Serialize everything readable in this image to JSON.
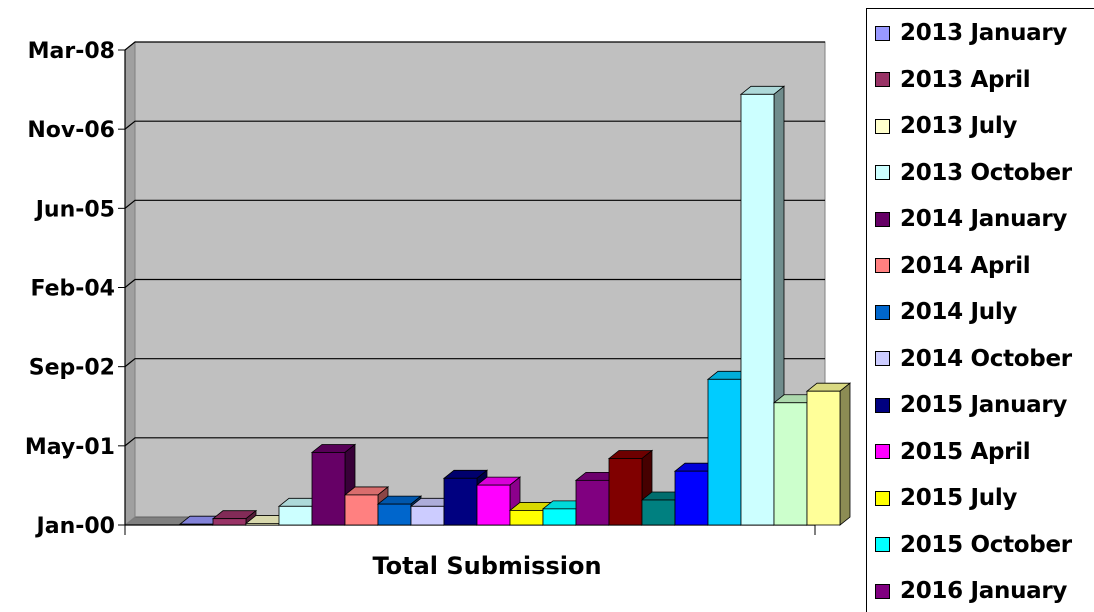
{
  "chart_data": {
    "type": "bar",
    "xlabel": "Total Submission",
    "ylabel": "",
    "y_ticks": [
      "Jan-00",
      "May-01",
      "Sep-02",
      "Feb-04",
      "Jun-05",
      "Nov-06",
      "Mar-08"
    ],
    "ylim": [
      0,
      3000
    ],
    "grid": true,
    "legend_position": "right",
    "categories": [
      "Total Submission"
    ],
    "series": [
      {
        "name": "2013 January",
        "color": "#9999FF",
        "values": [
          5
        ]
      },
      {
        "name": "2013 April",
        "color": "#993366",
        "values": [
          40
        ]
      },
      {
        "name": "2013 July",
        "color": "#FFFFCC",
        "values": [
          10
        ]
      },
      {
        "name": "2013 October",
        "color": "#CCFFFF",
        "values": [
          118
        ]
      },
      {
        "name": "2014 January",
        "color": "#660066",
        "values": [
          458
        ]
      },
      {
        "name": "2014 April",
        "color": "#FF8080",
        "values": [
          190
        ]
      },
      {
        "name": "2014 July",
        "color": "#0066CC",
        "values": [
          132
        ]
      },
      {
        "name": "2014 October",
        "color": "#CCCCFF",
        "values": [
          118
        ]
      },
      {
        "name": "2015 January",
        "color": "#000080",
        "values": [
          295
        ]
      },
      {
        "name": "2015 April",
        "color": "#FF00FF",
        "values": [
          252
        ]
      },
      {
        "name": "2015 July",
        "color": "#FFFF00",
        "values": [
          92
        ]
      },
      {
        "name": "2015 October",
        "color": "#00FFFF",
        "values": [
          102
        ]
      },
      {
        "name": "2016 January",
        "color": "#800080",
        "values": [
          282
        ]
      },
      {
        "name": "",
        "color": "#800000",
        "values": [
          420
        ]
      },
      {
        "name": "",
        "color": "#008080",
        "values": [
          158
        ]
      },
      {
        "name": "",
        "color": "#0000FF",
        "values": [
          340
        ]
      },
      {
        "name": "",
        "color": "#00CCFF",
        "values": [
          920
        ]
      },
      {
        "name": "",
        "color": "#CCFFFF",
        "values": [
          2720
        ]
      },
      {
        "name": "",
        "color": "#CCFFCC",
        "values": [
          772
        ]
      },
      {
        "name": "",
        "color": "#FFFF99",
        "values": [
          845
        ]
      }
    ]
  }
}
